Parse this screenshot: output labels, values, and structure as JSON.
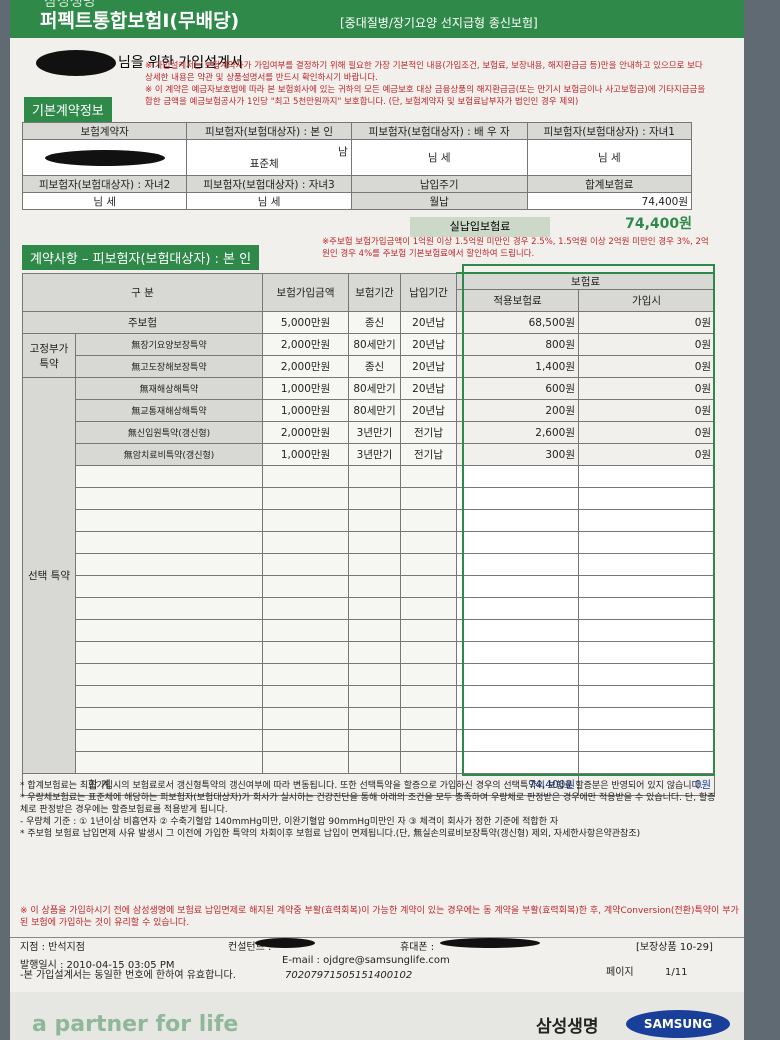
{
  "header": {
    "company_top": "삼성생명",
    "title": "퍼펙트통합보험Ⅰ(무배당)",
    "subtitle": "[중대질병/장기요양 선지급형 종신보험]"
  },
  "plan_title": "님을 위한 가입설계서",
  "notices": [
    "※ 가입설계서는 보험계약자가 가입여부를 결정하기 위해 필요한 가장 기본적인 내용(가입조건, 보험료, 보장내용, 해지환급금 등)만을 안내하고 있으므로 보다 상세한 내용은 약관 및 상품설명서를 반드시 확인하시기 바랍니다.",
    "※ 이 계약은 예금자보호법에 따라 본 보험회사에 있는 귀하의 모든 예금보호 대상 금융상품의 해지환급금(또는 만기시 보험금이나 사고보험금)에 기타지급금을 합한 금액을 예금보험공사가 1인당 \"최고 5천만원까지\" 보호합니다. (단, 보험계약자 및 보험료납부자가 법인인 경우 제외)"
  ],
  "basic": {
    "section_title": "기본계약정보",
    "row1_headers": [
      "보험계약자",
      "피보험자(보험대상자) : 본 인",
      "피보험자(보험대상자) : 배 우 자",
      "피보험자(보험대상자) : 자녀1"
    ],
    "insured_sex": "남",
    "insured_class": "표준체",
    "spouse": "님 세",
    "child1": "님 세",
    "row2_headers": [
      "피보험자(보험대상자) : 자녀2",
      "피보험자(보험대상자) : 자녀3",
      "납입주기",
      "합계보험료"
    ],
    "row2_values": [
      "님 세",
      "님 세",
      "월납",
      "74,400원"
    ],
    "actual_label": "실납입보험료",
    "actual_value": "74,400원"
  },
  "contract": {
    "section_title": "계약사항 – 피보험자(보험대상자) : 본 인",
    "note": "※주보험 보험가입금액이 1억원 이상 1.5억원 미만인 경우 2.5%, 1.5억원 이상 2억원 미만인 경우 3%, 2억원인 경우 4%를 주보험 기본보험료에서 할인하여 드립니다.",
    "headers": [
      "구 분",
      "보험가입금액",
      "보험기간",
      "납입기간",
      "보험료",
      "적용보험료",
      "가입시"
    ],
    "main_row": [
      "주보험",
      "5,000만원",
      "종신",
      "20년납",
      "68,500원",
      "0원"
    ],
    "fixed_label": "고정부가 특약",
    "fixed_rows": [
      [
        "無장기요양보장특약",
        "2,000만원",
        "80세만기",
        "20년납",
        "800원",
        "0원"
      ],
      [
        "無고도장해보장특약",
        "2,000만원",
        "종신",
        "20년납",
        "1,400원",
        "0원"
      ]
    ],
    "optional_label": "선택 특약",
    "optional_rows": [
      [
        "無재해상해특약",
        "1,000만원",
        "80세만기",
        "20년납",
        "600원",
        "0원"
      ],
      [
        "無교통재해상해특약",
        "1,000만원",
        "80세만기",
        "20년납",
        "200원",
        "0원"
      ],
      [
        "無신입원특약(갱신형)",
        "2,000만원",
        "3년만기",
        "전기납",
        "2,600원",
        "0원"
      ],
      [
        "無암치료비특약(갱신형)",
        "1,000만원",
        "3년만기",
        "전기납",
        "300원",
        "0원"
      ]
    ],
    "total": [
      "합 계",
      "74,400원",
      "0원"
    ]
  },
  "footnotes": [
    "* 합계보험료는 최초가입시의 보험료로서 갱신형특약의 갱신여부에 따라 변동됩니다. 또한 선택특약을 할증으로 가입하신 경우의 선택특약의 보험료 할증분은 반영되어 있지 않습니다.",
    "* 우량체보험료는 표준체에 해당하는 피보험자(보험대상자)가 회사가 실시하는 건강진단을 통해 아래의 조건을 모두 충족하여 우량체로 판정받은 경우에만 적용받을 수 있습니다. 단, 할증체로 판정받은 경우에는 할증보험료를 적용받게 됩니다.",
    "- 우량체 기준 : ① 1년이상 비흡연자 ② 수축기혈압 140mmHg미만, 이완기혈압 90mmHg미만인 자 ③ 체격이 회사가 정한 기준에 적합한 자",
    "* 주보험 보험료 납입면제 사유 발생시 그 이전에 가입한 특약의 차회이후 보험료 납입이 면제됩니다.(단, 無실손의료비보장특약(갱신형) 제외, 자세한사항은약관참조)"
  ],
  "warning": "※ 이 상품을 가입하시기 전에 삼성생명에 보험료 납입면제로 해지된 계약중 부활(효력회복)이 가능한 계약이 있는 경우에는 동 계약을 부활(효력회복)한 후, 계약Conversion(전환)특약이 부가된 보험에 가입하는 것이 유리할 수 있습니다.",
  "footer": {
    "branch": "지점 : 반석지점",
    "consultant": "컨설턴트 :",
    "mobile": "휴대폰 :",
    "product_code": "[보장상품 10-29]",
    "issued": "발행일시 : 2010-04-15 03:05 PM",
    "email": "E-mail : ojdgre@samsunglife.com",
    "validity": "-본 가입설계서는 동일한 번호에 한하여 유효합니다.",
    "number": "70207971505151400102",
    "page_label": "페이지",
    "page": "1/11"
  },
  "brand": {
    "slogan": "a partner for life",
    "company": "삼성생명",
    "logo": "SAMSUNG"
  }
}
